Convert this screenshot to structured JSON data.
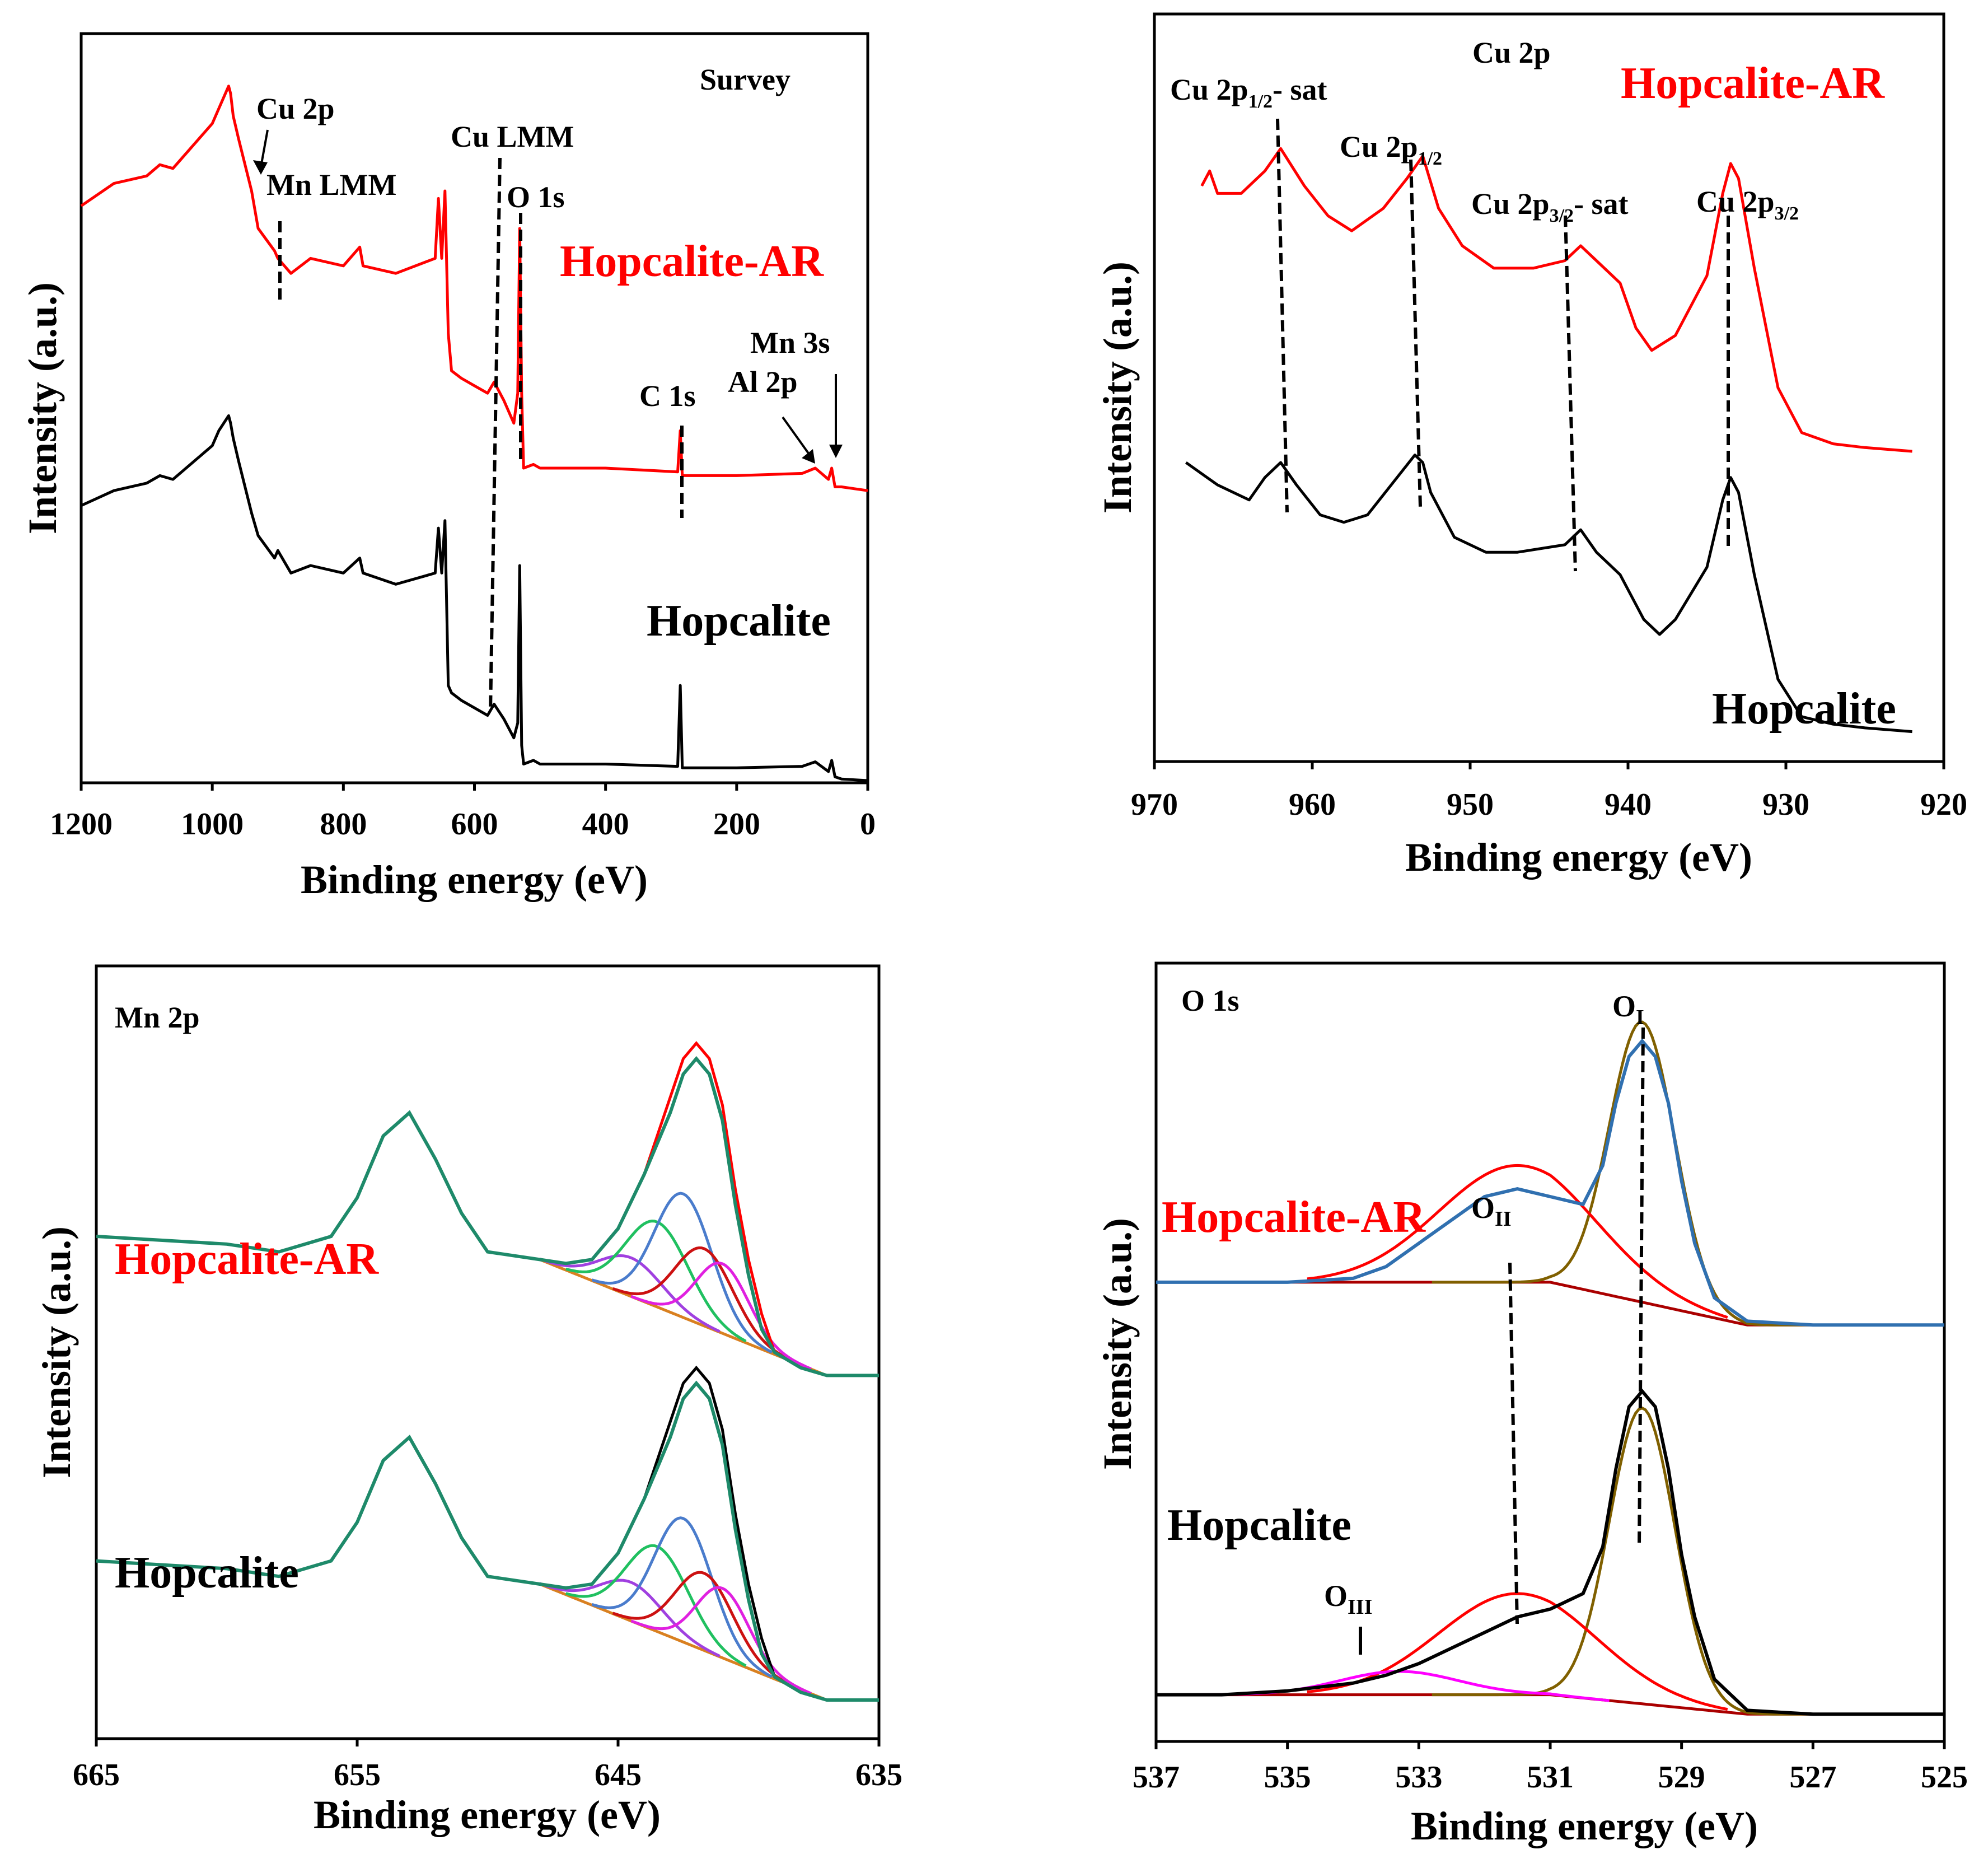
{
  "figure": {
    "panel_count": 4
  },
  "chart_data": [
    {
      "id": "survey",
      "type": "line",
      "title": "Survey",
      "xlabel": "Binding energy (eV)",
      "ylabel": "Intensity (a.u.)",
      "xlim": [
        1200,
        0
      ],
      "ylim": [
        0,
        100
      ],
      "xticks": [
        "1200",
        "1000",
        "800",
        "600",
        "400",
        "200",
        "0"
      ],
      "xtick_values": [
        1200,
        1000,
        800,
        600,
        400,
        200,
        0
      ],
      "colors": {
        "Hopcalite-AR": "#ff0000",
        "Hopcalite": "#000000"
      },
      "series": [
        {
          "name": "Hopcalite-AR",
          "color": "#ff0000",
          "x": [
            1200,
            1150,
            1100,
            1080,
            1060,
            1000,
            990,
            975,
            972,
            968,
            960,
            940,
            930,
            905,
            900,
            880,
            850,
            800,
            775,
            770,
            720,
            660,
            655,
            650,
            645,
            640,
            635,
            620,
            600,
            580,
            570,
            555,
            540,
            534,
            531,
            528,
            525,
            510,
            500,
            400,
            290,
            286,
            283,
            280,
            200,
            100,
            80,
            60,
            55,
            50,
            40,
            0
          ],
          "values": [
            77,
            80,
            81,
            82.5,
            82,
            88,
            90,
            93,
            92,
            89,
            86,
            79,
            74,
            71,
            70,
            68,
            70,
            69,
            71.5,
            69,
            68,
            70,
            78,
            70,
            79,
            60,
            55,
            54,
            53,
            52,
            53.5,
            51,
            48,
            52,
            74,
            52,
            42,
            42.5,
            42,
            42,
            41.5,
            47,
            41,
            41,
            41,
            41.3,
            42,
            40.5,
            42,
            39.5,
            39.5,
            39
          ]
        },
        {
          "name": "Hopcalite",
          "color": "#000000",
          "x": [
            1200,
            1150,
            1100,
            1080,
            1060,
            1000,
            990,
            975,
            972,
            968,
            960,
            940,
            930,
            905,
            900,
            880,
            850,
            800,
            775,
            770,
            720,
            660,
            655,
            650,
            645,
            640,
            635,
            620,
            600,
            580,
            570,
            555,
            540,
            534,
            531,
            528,
            525,
            510,
            500,
            400,
            290,
            286,
            283,
            280,
            200,
            100,
            80,
            60,
            55,
            50,
            40,
            0
          ],
          "values": [
            37,
            39,
            40,
            41,
            40.5,
            45,
            47,
            49,
            48,
            46,
            43,
            36,
            33,
            30,
            31,
            28,
            29,
            28,
            30,
            28,
            26.5,
            28,
            34,
            28,
            35,
            13,
            12,
            11,
            10,
            9,
            10.5,
            8.5,
            6,
            8,
            29,
            5,
            2.5,
            3,
            2.5,
            2.5,
            2.2,
            13,
            2,
            2,
            2,
            2.2,
            2.8,
            1.5,
            3,
            0.8,
            0.5,
            0.3
          ]
        }
      ],
      "labels": {
        "ar": "Hopcalite-AR",
        "base": "Hopcalite"
      },
      "annotations": [
        "Cu 2p",
        "Mn LMM",
        "Cu LMM",
        "O 1s",
        "C 1s",
        "Al 2p",
        "Mn 3s"
      ]
    },
    {
      "id": "cu2p",
      "type": "line",
      "title": "Cu 2p",
      "xlabel": "Binding energy (eV)",
      "ylabel": "Intensity (a.u.)",
      "xlim": [
        970,
        920
      ],
      "ylim": [
        0,
        100
      ],
      "xticks": [
        "970",
        "960",
        "950",
        "940",
        "930",
        "920"
      ],
      "xtick_values": [
        970,
        960,
        950,
        940,
        930,
        920
      ],
      "colors": {
        "Hopcalite-AR": "#ff0000",
        "Hopcalite": "#000000"
      },
      "series": [
        {
          "name": "Hopcalite-AR",
          "color": "#ff0000",
          "x": [
            967,
            966.5,
            966,
            964.5,
            963,
            962,
            960.5,
            959,
            957.5,
            955.5,
            954,
            953,
            952,
            950.5,
            948.5,
            946,
            944,
            943,
            942,
            940.5,
            939.5,
            938.5,
            937,
            935,
            934,
            933.5,
            933,
            932,
            930.5,
            929,
            927,
            925,
            922
          ],
          "values": [
            77,
            79,
            76,
            76,
            79,
            82,
            77,
            73,
            71,
            74,
            78,
            81,
            74,
            69,
            66,
            66,
            67,
            69,
            67,
            64,
            58,
            55,
            57,
            65,
            76,
            80,
            78,
            66,
            50,
            44,
            42.5,
            42,
            41.5
          ]
        },
        {
          "name": "Hopcalite",
          "color": "#000000",
          "x": [
            968,
            966,
            964,
            963,
            962,
            961,
            959.5,
            958,
            956.5,
            955,
            953.5,
            953,
            952.5,
            951,
            949,
            947,
            944,
            943,
            942,
            940.5,
            939,
            938,
            937,
            935,
            934,
            933.5,
            933,
            932,
            930.5,
            929,
            927,
            925,
            922
          ],
          "values": [
            40,
            37,
            35,
            38,
            40,
            37,
            33,
            32,
            33,
            37,
            41,
            40,
            36,
            30,
            28,
            28,
            29,
            31,
            28,
            25,
            19,
            17,
            19,
            26,
            35,
            38,
            36,
            25,
            11,
            6,
            5,
            4.5,
            4
          ]
        }
      ],
      "labels": {
        "ar": "Hopcalite-AR",
        "base": "Hopcalite"
      },
      "annotations": {
        "p12sat": {
          "a": "Cu 2p",
          "sub": "1/2",
          "b": "- sat"
        },
        "p12": {
          "a": "Cu 2p",
          "sub": "1/2",
          "b": ""
        },
        "p32sat": {
          "a": "Cu 2p",
          "sub": "3/2",
          "b": "- sat"
        },
        "p32": {
          "a": "Cu 2p",
          "sub": "3/2",
          "b": ""
        }
      }
    },
    {
      "id": "mn2p",
      "type": "line",
      "title": "Mn 2p",
      "xlabel": "Binding energy (eV)",
      "ylabel": "Intensity (a.u.)",
      "xlim": [
        665,
        635
      ],
      "ylim": [
        0,
        100
      ],
      "xticks": [
        "665",
        "655",
        "645",
        "635"
      ],
      "xtick_values": [
        665,
        655,
        645,
        635
      ],
      "colors": {
        "envelope_fit": "#1e8a6a",
        "components": [
          "#a040e0",
          "#2090e0",
          "#20c060",
          "#4a7ccc",
          "#cc1111",
          "#e020e0"
        ]
      },
      "series": [
        {
          "name": "Hopcalite-AR envelope",
          "color": "#1e8a6a",
          "x": [
            665,
            660,
            658,
            656,
            655,
            654,
            653,
            652,
            651,
            650,
            648,
            647,
            646,
            645,
            644,
            643,
            642.5,
            642,
            641.5,
            641,
            640.5,
            640,
            639.5,
            639,
            638.5,
            638,
            637,
            635
          ],
          "values": [
            65,
            64,
            63,
            65,
            70,
            78,
            81,
            75,
            68,
            63,
            62,
            61.5,
            62,
            66,
            73,
            81,
            86,
            88,
            86,
            80,
            69,
            60,
            53,
            50,
            49,
            48,
            47,
            47
          ]
        },
        {
          "name": "Hopcalite envelope",
          "color": "#1e8a6a",
          "x": [
            665,
            660,
            658,
            656,
            655,
            654,
            653,
            652,
            651,
            650,
            648,
            647,
            646,
            645,
            644,
            643,
            642.5,
            642,
            641.5,
            641,
            640.5,
            640,
            639.5,
            639,
            638.5,
            638,
            637,
            635
          ],
          "values": [
            23,
            22,
            21,
            23,
            28,
            36,
            39,
            33,
            26,
            21,
            20,
            19.5,
            20,
            24,
            31,
            39,
            44,
            46,
            44,
            38,
            27,
            18,
            11,
            8,
            7,
            6,
            5,
            5
          ]
        }
      ],
      "components": [
        {
          "center": 644.5,
          "width": 1.2,
          "height": 5,
          "color": "#a040e0"
        },
        {
          "center": 643.5,
          "width": 1.2,
          "height": 11,
          "color": "#20c060"
        },
        {
          "center": 642.5,
          "width": 1.1,
          "height": 16,
          "color": "#4a7ccc"
        },
        {
          "center": 641.7,
          "width": 1.1,
          "height": 10,
          "color": "#cc1111"
        },
        {
          "center": 641.0,
          "width": 1.0,
          "height": 9,
          "color": "#e020e0"
        }
      ],
      "labels": {
        "ar": "Hopcalite-AR",
        "base": "Hopcalite"
      }
    },
    {
      "id": "o1s",
      "type": "line",
      "title": "O 1s",
      "xlabel": "Binding energy (eV)",
      "ylabel": "Intensity (a.u.)",
      "xlim": [
        537,
        525
      ],
      "ylim": [
        0,
        100
      ],
      "xticks": [
        "537",
        "535",
        "533",
        "531",
        "529",
        "527",
        "525"
      ],
      "xtick_values": [
        537,
        535,
        533,
        531,
        529,
        527,
        525
      ],
      "colors": {
        "envelope": "#3070b0",
        "OI": "#806000",
        "OII": "#ff0000",
        "OIII": "#ff00ff",
        "baseline": "#aa0000"
      },
      "series": [
        {
          "name": "Hopcalite-AR",
          "color": "#3070b0",
          "x": [
            537,
            536,
            535,
            534,
            533.5,
            533,
            532.5,
            532,
            531.5,
            531,
            530.5,
            530.2,
            530,
            529.8,
            529.6,
            529.4,
            529.2,
            529,
            528.8,
            528.5,
            528,
            527,
            526,
            525
          ],
          "values": [
            59,
            59,
            59,
            59.5,
            61,
            64,
            67,
            70,
            71,
            70,
            69,
            74,
            82,
            88,
            90,
            88,
            82,
            72,
            64,
            57,
            54,
            53.5,
            53.5,
            53.5
          ]
        },
        {
          "name": "Hopcalite",
          "color": "#000000",
          "x": [
            537,
            536,
            535,
            534,
            533.5,
            533,
            532.5,
            532,
            531.5,
            531,
            530.5,
            530.2,
            530,
            529.8,
            529.6,
            529.4,
            529.2,
            529,
            528.8,
            528.5,
            528,
            527,
            526,
            525
          ],
          "values": [
            6,
            6,
            6.5,
            7.5,
            8.5,
            10,
            12,
            14,
            16,
            17,
            19,
            25,
            35,
            43,
            45,
            43,
            35,
            24,
            16,
            8,
            4,
            3.5,
            3.5,
            3.5
          ]
        }
      ],
      "components": [
        {
          "name": "OI",
          "center": 529.6,
          "width": 0.5,
          "color": "#806000",
          "height_ar": 36,
          "height_base": 38
        },
        {
          "name": "OII",
          "center": 531.5,
          "width": 1.2,
          "color": "#ff0000",
          "height_ar": 15,
          "height_base": 13
        },
        {
          "name": "OIII",
          "center": 533.3,
          "width": 0.9,
          "color": "#ff00ff",
          "height_ar": 0,
          "height_base": 3
        }
      ],
      "labels": {
        "ar": "Hopcalite-AR",
        "base": "Hopcalite"
      },
      "annotations": {
        "OI": {
          "a": "O",
          "sub": "I"
        },
        "OII": {
          "a": "O",
          "sub": "II"
        },
        "OIII": {
          "a": "O",
          "sub": "III"
        }
      }
    }
  ]
}
